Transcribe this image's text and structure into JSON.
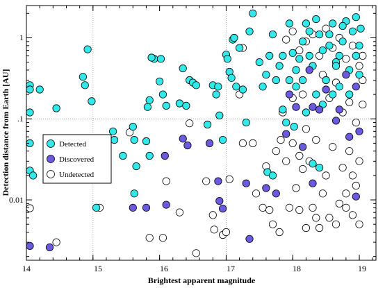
{
  "chart_data": {
    "type": "scatter",
    "xlabel": "Brightest apparent magnitude",
    "ylabel": "Detection distance from Earth [AU]",
    "xlim": [
      14,
      19.25
    ],
    "ylim": [
      0.0018,
      2.5
    ],
    "yscale": "log",
    "xticks": [
      "14",
      "15",
      "16",
      "17",
      "18",
      "19"
    ],
    "yticks": [
      "0.01",
      ".1",
      "1"
    ],
    "ytick_values": [
      0.01,
      0.1,
      1
    ],
    "grid": "dotted lines at x=15, x=17 and y=0.1",
    "legend_position": "left",
    "series": [
      {
        "name": "Detected",
        "color": "#33e8e8",
        "points": [
          [
            14.0,
            0.26
          ],
          [
            14.0,
            0.23
          ],
          [
            14.0,
            0.12
          ],
          [
            14.0,
            0.05
          ],
          [
            14.0,
            0.023
          ],
          [
            14.1,
            0.02
          ],
          [
            14.2,
            0.23
          ],
          [
            14.45,
            0.135
          ],
          [
            14.85,
            0.33
          ],
          [
            14.88,
            0.26
          ],
          [
            14.92,
            0.72
          ],
          [
            14.98,
            0.165
          ],
          [
            15.05,
            0.008
          ],
          [
            15.3,
            0.07
          ],
          [
            15.32,
            0.055
          ],
          [
            15.45,
            0.035
          ],
          [
            15.6,
            0.08
          ],
          [
            15.62,
            0.055
          ],
          [
            15.65,
            0.026
          ],
          [
            15.62,
            0.012
          ],
          [
            15.8,
            0.053
          ],
          [
            15.85,
            0.035
          ],
          [
            15.82,
            0.14
          ],
          [
            15.85,
            0.17
          ],
          [
            15.92,
            0.55
          ],
          [
            15.88,
            0.57
          ],
          [
            16.0,
            0.29
          ],
          [
            16.02,
            0.55
          ],
          [
            16.05,
            0.2
          ],
          [
            16.1,
            0.145
          ],
          [
            16.3,
            0.155
          ],
          [
            16.4,
            0.145
          ],
          [
            16.35,
            0.42
          ],
          [
            16.45,
            0.3
          ],
          [
            16.5,
            0.28
          ],
          [
            16.55,
            0.26
          ],
          [
            16.72,
            0.085
          ],
          [
            16.8,
            0.26
          ],
          [
            16.85,
            0.2
          ],
          [
            16.88,
            0.25
          ],
          [
            16.9,
            0.11
          ],
          [
            16.95,
            0.055
          ],
          [
            17.0,
            0.62
          ],
          [
            17.02,
            0.55
          ],
          [
            17.05,
            0.38
          ],
          [
            17.08,
            0.32
          ],
          [
            17.1,
            0.95
          ],
          [
            17.12,
            1.0
          ],
          [
            17.15,
            0.25
          ],
          [
            17.2,
            0.75
          ],
          [
            17.25,
            0.23
          ],
          [
            17.3,
            0.09
          ],
          [
            17.35,
            1.2
          ],
          [
            17.4,
            2.0
          ],
          [
            17.5,
            0.5
          ],
          [
            17.55,
            0.25
          ],
          [
            17.6,
            0.35
          ],
          [
            17.62,
            0.022
          ],
          [
            17.65,
            0.6
          ],
          [
            17.7,
            0.02
          ],
          [
            17.7,
            1.1
          ],
          [
            17.75,
            0.3
          ],
          [
            17.8,
            0.45
          ],
          [
            17.85,
            0.13
          ],
          [
            17.9,
            0.09
          ],
          [
            17.95,
            0.3
          ],
          [
            18.0,
            0.65
          ],
          [
            18.02,
            0.08
          ],
          [
            18.05,
            0.4
          ],
          [
            18.1,
            0.55
          ],
          [
            18.15,
            0.3
          ],
          [
            18.2,
            1.5
          ],
          [
            18.25,
            0.6
          ],
          [
            18.3,
            0.45
          ],
          [
            18.35,
            0.2
          ],
          [
            18.4,
            1.1
          ],
          [
            18.45,
            0.7
          ],
          [
            18.5,
            0.3
          ],
          [
            18.55,
            0.8
          ],
          [
            18.6,
            1.5
          ],
          [
            18.65,
            0.5
          ],
          [
            18.7,
            0.25
          ],
          [
            18.75,
            0.9
          ],
          [
            18.8,
            1.6
          ],
          [
            18.85,
            0.4
          ],
          [
            18.9,
            1.2
          ],
          [
            18.95,
            0.6
          ],
          [
            19.0,
            0.8
          ],
          [
            19.02,
            1.3
          ],
          [
            18.3,
            0.028
          ],
          [
            18.4,
            0.025
          ],
          [
            18.6,
            0.2
          ],
          [
            18.7,
            0.6
          ],
          [
            18.25,
            1.2
          ],
          [
            17.95,
            1.5
          ],
          [
            18.15,
            0.9
          ],
          [
            18.35,
            1.7
          ],
          [
            18.55,
            1.1
          ],
          [
            18.75,
            1.4
          ],
          [
            18.95,
            1.8
          ],
          [
            17.85,
            0.6
          ],
          [
            18.05,
            0.25
          ],
          [
            18.45,
            0.15
          ],
          [
            18.65,
            0.45
          ],
          [
            18.85,
            0.2
          ],
          [
            19.0,
            0.35
          ],
          [
            18.2,
            0.12
          ]
        ]
      },
      {
        "name": "Discovered",
        "color": "#6a5ae0",
        "points": [
          [
            14.0,
            0.0027
          ],
          [
            14.35,
            0.0026
          ],
          [
            15.6,
            0.008
          ],
          [
            15.8,
            0.008
          ],
          [
            16.08,
            0.035
          ],
          [
            16.1,
            0.0087
          ],
          [
            16.35,
            0.057
          ],
          [
            16.42,
            0.047
          ],
          [
            16.75,
            0.05
          ],
          [
            16.88,
            0.017
          ],
          [
            16.9,
            0.0097
          ],
          [
            16.95,
            0.0078
          ],
          [
            17.3,
            0.016
          ],
          [
            17.35,
            0.0033
          ],
          [
            17.6,
            0.014
          ],
          [
            17.75,
            0.012
          ],
          [
            17.9,
            0.065
          ],
          [
            17.95,
            0.2
          ],
          [
            18.05,
            0.14
          ],
          [
            18.15,
            0.045
          ],
          [
            18.3,
            0.14
          ],
          [
            18.4,
            0.13
          ],
          [
            18.3,
            0.016
          ],
          [
            18.5,
            0.23
          ],
          [
            18.65,
            0.095
          ],
          [
            18.8,
            0.35
          ],
          [
            18.85,
            0.06
          ],
          [
            18.95,
            0.25
          ],
          [
            19.0,
            0.07
          ],
          [
            18.95,
            0.011
          ],
          [
            18.25,
            0.4
          ],
          [
            18.7,
            0.13
          ]
        ]
      },
      {
        "name": "Undetected",
        "color": "#ffffff",
        "points": [
          [
            14.0,
            0.0079
          ],
          [
            14.45,
            0.003
          ],
          [
            15.1,
            0.008
          ],
          [
            15.55,
            0.068
          ],
          [
            15.85,
            0.0034
          ],
          [
            16.05,
            0.0034
          ],
          [
            16.1,
            0.017
          ],
          [
            16.3,
            0.007
          ],
          [
            16.45,
            0.088
          ],
          [
            16.55,
            0.0022
          ],
          [
            16.7,
            0.017
          ],
          [
            16.8,
            0.0065
          ],
          [
            16.82,
            0.0043
          ],
          [
            16.95,
            0.0037
          ],
          [
            17.0,
            0.004
          ],
          [
            17.05,
            0.018
          ],
          [
            17.2,
            0.2
          ],
          [
            17.25,
            0.05
          ],
          [
            17.25,
            0.75
          ],
          [
            17.4,
            0.05
          ],
          [
            17.45,
            0.012
          ],
          [
            17.55,
            0.008
          ],
          [
            17.6,
            0.026
          ],
          [
            17.65,
            0.0075
          ],
          [
            17.7,
            0.005
          ],
          [
            17.75,
            0.04
          ],
          [
            17.8,
            0.004
          ],
          [
            17.82,
            0.055
          ],
          [
            17.9,
            0.03
          ],
          [
            17.95,
            0.008
          ],
          [
            18.0,
            0.05
          ],
          [
            18.05,
            0.014
          ],
          [
            18.1,
            0.0075
          ],
          [
            18.15,
            0.024
          ],
          [
            18.2,
            0.0045
          ],
          [
            18.25,
            0.03
          ],
          [
            18.3,
            0.008
          ],
          [
            18.35,
            0.006
          ],
          [
            18.4,
            0.0045
          ],
          [
            18.45,
            0.012
          ],
          [
            18.5,
            0.02
          ],
          [
            18.55,
            0.006
          ],
          [
            18.6,
            0.045
          ],
          [
            18.65,
            0.005
          ],
          [
            18.7,
            0.009
          ],
          [
            18.75,
            0.025
          ],
          [
            18.8,
            0.008
          ],
          [
            18.85,
            0.04
          ],
          [
            18.9,
            0.0065
          ],
          [
            18.95,
            0.015
          ],
          [
            19.0,
            0.005
          ],
          [
            17.9,
            0.95
          ],
          [
            18.0,
            1.2
          ],
          [
            18.1,
            0.7
          ],
          [
            18.2,
            0.9
          ],
          [
            18.3,
            1.1
          ],
          [
            18.4,
            0.6
          ],
          [
            18.5,
            1.3
          ],
          [
            18.6,
            0.75
          ],
          [
            18.7,
            1.0
          ],
          [
            18.8,
            0.55
          ],
          [
            18.9,
            0.8
          ],
          [
            19.0,
            0.45
          ],
          [
            18.45,
            0.35
          ],
          [
            18.55,
            0.18
          ],
          [
            18.65,
            0.28
          ],
          [
            18.75,
            0.12
          ],
          [
            18.85,
            0.16
          ],
          [
            18.95,
            0.09
          ],
          [
            18.35,
            0.055
          ],
          [
            18.2,
            0.075
          ],
          [
            18.1,
            0.035
          ],
          [
            17.85,
            0.12
          ],
          [
            18.0,
            0.18
          ],
          [
            18.15,
            0.2
          ],
          [
            19.05,
            0.6
          ],
          [
            19.05,
            0.3
          ],
          [
            19.05,
            0.15
          ],
          [
            19.0,
            0.03
          ],
          [
            18.9,
            0.02
          ],
          [
            18.8,
            0.012
          ]
        ]
      }
    ]
  }
}
